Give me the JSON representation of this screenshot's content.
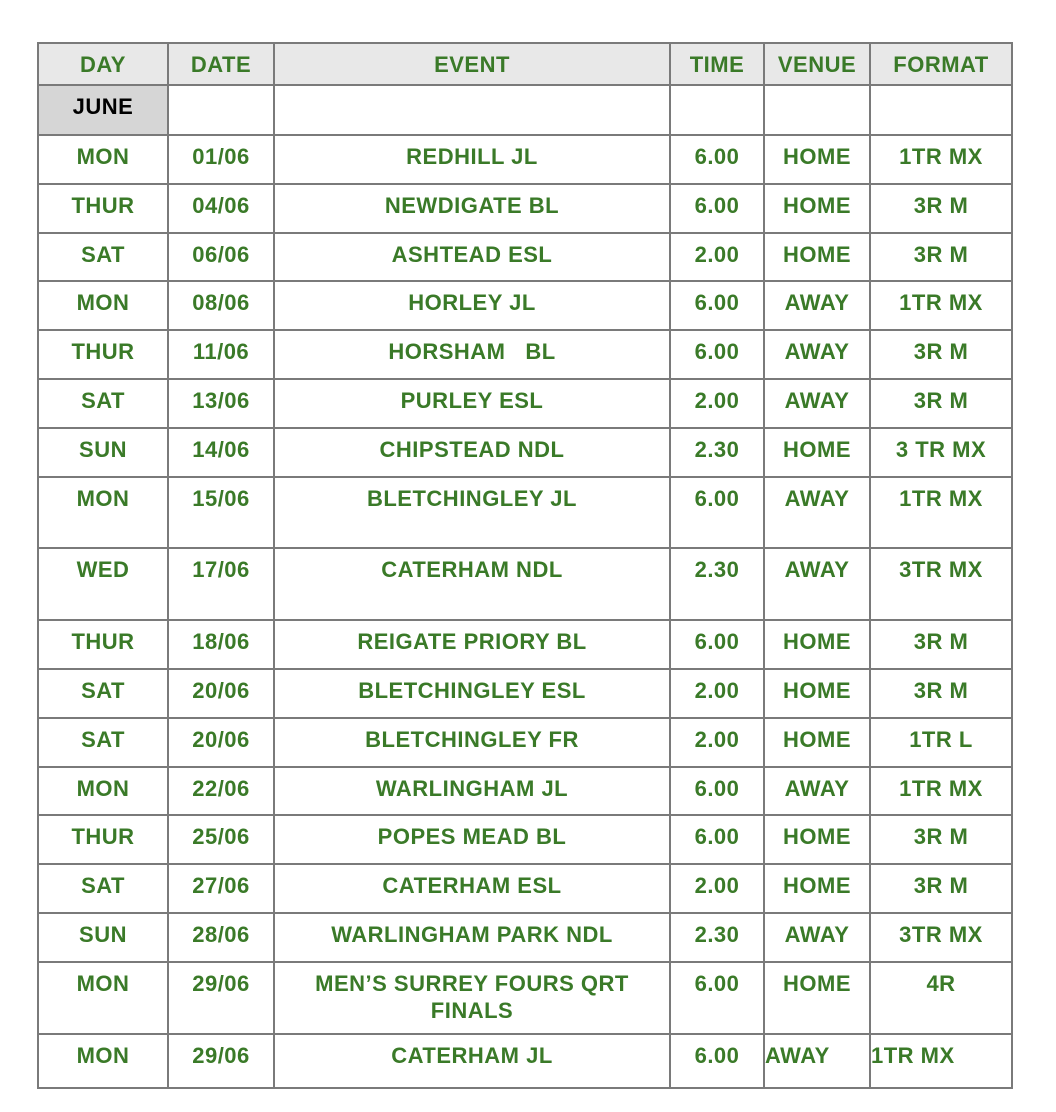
{
  "headers": [
    "DAY",
    "DATE",
    "EVENT",
    "TIME",
    "VENUE",
    "FORMAT"
  ],
  "month": "JUNE",
  "rows": [
    {
      "day": "MON",
      "date": "01/06",
      "event": "REDHILL JL",
      "time": "6.00",
      "venue": "HOME",
      "format": "1TR MX"
    },
    {
      "day": "THUR",
      "date": "04/06",
      "event": "NEWDIGATE BL",
      "time": "6.00",
      "venue": "HOME",
      "format": "3R M"
    },
    {
      "day": "SAT",
      "date": "06/06",
      "event": "ASHTEAD ESL",
      "time": "2.00",
      "venue": "HOME",
      "format": "3R M"
    },
    {
      "day": "MON",
      "date": "08/06",
      "event": "HORLEY JL",
      "time": "6.00",
      "venue": "AWAY",
      "format": "1TR MX"
    },
    {
      "day": "THUR",
      "date": "11/06",
      "event": "HORSHAM   BL",
      "time": "6.00",
      "venue": "AWAY",
      "format": "3R M"
    },
    {
      "day": "SAT",
      "date": "13/06",
      "event": "PURLEY ESL",
      "time": "2.00",
      "venue": "AWAY",
      "format": "3R M"
    },
    {
      "day": "SUN",
      "date": "14/06",
      "event": "CHIPSTEAD NDL",
      "time": "2.30",
      "venue": "HOME",
      "format": "3 TR MX"
    },
    {
      "day": "MON",
      "date": "15/06",
      "event": "BLETCHINGLEY JL",
      "time": "6.00",
      "venue": "AWAY",
      "format": "1TR MX"
    },
    {
      "day": "WED",
      "date": "17/06",
      "event": "CATERHAM NDL",
      "time": "2.30",
      "venue": "AWAY",
      "format": "3TR MX"
    },
    {
      "day": "THUR",
      "date": "18/06",
      "event": "REIGATE PRIORY BL",
      "time": "6.00",
      "venue": "HOME",
      "format": "3R M"
    },
    {
      "day": "SAT",
      "date": "20/06",
      "event": "BLETCHINGLEY ESL",
      "time": "2.00",
      "venue": "HOME",
      "format": "3R M"
    },
    {
      "day": "SAT",
      "date": "20/06",
      "event": "BLETCHINGLEY FR",
      "time": "2.00",
      "venue": "HOME",
      "format": "1TR L"
    },
    {
      "day": "MON",
      "date": "22/06",
      "event": "WARLINGHAM JL",
      "time": "6.00",
      "venue": "AWAY",
      "format": "1TR MX"
    },
    {
      "day": "THUR",
      "date": "25/06",
      "event": "POPES MEAD BL",
      "time": "6.00",
      "venue": "HOME",
      "format": "3R M"
    },
    {
      "day": "SAT",
      "date": "27/06",
      "event": "CATERHAM ESL",
      "time": "2.00",
      "venue": "HOME",
      "format": "3R M"
    },
    {
      "day": "SUN",
      "date": "28/06",
      "event": "WARLINGHAM PARK NDL",
      "time": "2.30",
      "venue": "AWAY",
      "format": "3TR MX"
    },
    {
      "day": "MON",
      "date": "29/06",
      "event": "MEN’S SURREY FOURS QRT FINALS",
      "time": "6.00",
      "venue": "HOME",
      "format": "4R"
    },
    {
      "day": "MON",
      "date": "29/06",
      "event": "CATERHAM JL",
      "time": "6.00",
      "venue": "AWAY",
      "format": "1TR MX"
    }
  ]
}
